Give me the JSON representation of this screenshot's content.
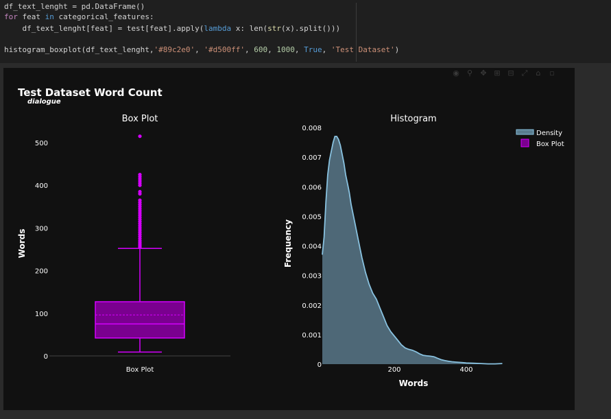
{
  "code": {
    "line1": "df_text_lenght = pd.DataFrame()",
    "line2_kw": "for",
    "line2_a": " feat ",
    "line2_in": "in",
    "line2_b": " categorical_features:",
    "line3_a": "    df_text_lenght[feat] = test[feat].apply(",
    "line3_lambda": "lambda",
    "line3_b": " x: len(",
    "line3_str": "str",
    "line3_c": "(x).split()))",
    "line5_a": "histogram_boxplot(df_text_lenght,",
    "line5_s1": "'#89c2e0'",
    "line5_c1": ", ",
    "line5_s2": "'#d500ff'",
    "line5_c2": ", ",
    "line5_n1": "600",
    "line5_c3": ", ",
    "line5_n2": "1000",
    "line5_c4": ", ",
    "line5_true": "True",
    "line5_c5": ", ",
    "line5_s3": "'Test Dataset'",
    "line5_end": ")"
  },
  "figure": {
    "title": "Test Dataset Word Count",
    "subtitle": "dialogue",
    "left_title": "Box Plot",
    "right_title": "Histogram",
    "left_ylabel": "Words",
    "right_ylabel": "Frequency",
    "right_xlabel": "Words",
    "left_xtick": "Box Plot",
    "legend": [
      {
        "label": "Density",
        "color": "#89c2e0"
      },
      {
        "label": "Box Plot",
        "color": "#d500ff"
      }
    ],
    "colors": {
      "density": "#89c2e0",
      "box": "#d500ff",
      "background": "#111111"
    }
  },
  "chart_data": [
    {
      "type": "box",
      "title": "Box Plot",
      "ylabel": "Words",
      "categories": [
        "Box Plot"
      ],
      "ylim": [
        0,
        540
      ],
      "yticks": [
        0,
        100,
        200,
        300,
        400,
        500
      ],
      "stats": {
        "min": 9,
        "q1": 42,
        "median": 75,
        "mean": 96,
        "q3": 127,
        "upper_fence": 252
      },
      "outliers": [
        255,
        258,
        262,
        266,
        270,
        275,
        280,
        285,
        290,
        295,
        300,
        305,
        310,
        315,
        320,
        325,
        330,
        335,
        340,
        345,
        350,
        355,
        360,
        365,
        380,
        385,
        400,
        405,
        410,
        415,
        420,
        425,
        515
      ]
    },
    {
      "type": "area",
      "title": "Histogram",
      "xlabel": "Words",
      "ylabel": "Frequency",
      "xlim": [
        0,
        500
      ],
      "ylim": [
        0,
        0.008
      ],
      "xticks": [
        200,
        400
      ],
      "yticks": [
        0,
        0.001,
        0.002,
        0.003,
        0.004,
        0.005,
        0.006,
        0.007,
        0.008
      ],
      "series": [
        {
          "name": "Density",
          "x": [
            0,
            5,
            10,
            15,
            20,
            25,
            30,
            35,
            40,
            45,
            50,
            55,
            60,
            65,
            70,
            75,
            80,
            90,
            100,
            110,
            120,
            130,
            140,
            150,
            160,
            170,
            180,
            190,
            200,
            210,
            220,
            230,
            240,
            250,
            260,
            270,
            280,
            290,
            300,
            310,
            320,
            330,
            340,
            350,
            360,
            370,
            380,
            390,
            400,
            420,
            440,
            460,
            480,
            500
          ],
          "y": [
            0.0037,
            0.0043,
            0.0055,
            0.0064,
            0.0069,
            0.0072,
            0.0075,
            0.0077,
            0.0077,
            0.0076,
            0.0074,
            0.0071,
            0.0068,
            0.0064,
            0.0061,
            0.0058,
            0.0054,
            0.0048,
            0.0042,
            0.0036,
            0.0031,
            0.0027,
            0.0024,
            0.0022,
            0.0019,
            0.0016,
            0.0013,
            0.0011,
            0.00095,
            0.0008,
            0.00065,
            0.00055,
            0.0005,
            0.00047,
            0.00042,
            0.00035,
            0.0003,
            0.00028,
            0.00027,
            0.00025,
            0.0002,
            0.00015,
            0.00012,
            0.0001,
            8e-05,
            7e-05,
            6e-05,
            5e-05,
            4e-05,
            3e-05,
            2e-05,
            1e-05,
            1e-05,
            2e-05
          ]
        }
      ]
    }
  ]
}
